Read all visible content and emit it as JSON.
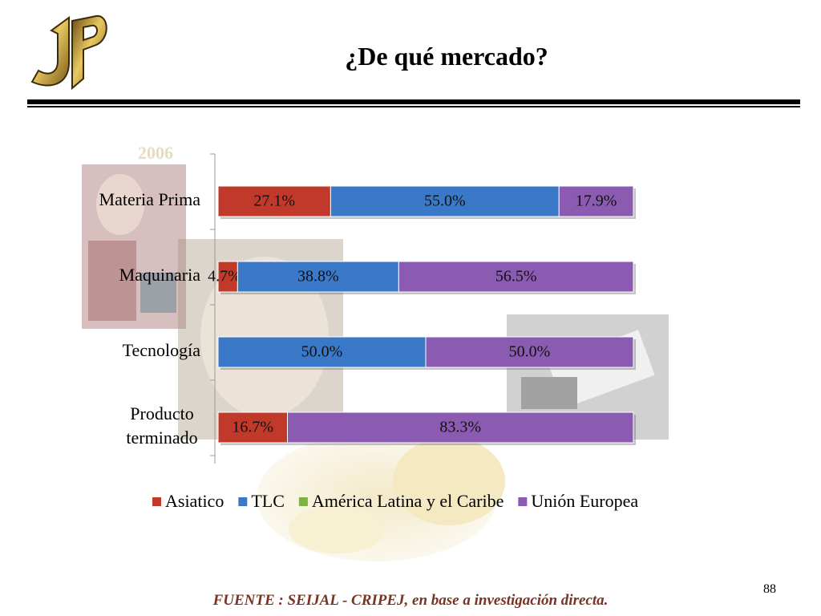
{
  "slide": {
    "title": "¿De qué mercado?",
    "footer": "FUENTE :  SEIJAL - CRIPEJ,  en base a investigación directa.",
    "page_number": "88"
  },
  "chart_data": {
    "type": "bar",
    "orientation": "horizontal",
    "stacked": true,
    "title": "2006",
    "categories": [
      "Materia Prima",
      "Maquinaria",
      "Tecnología",
      "Producto terminado"
    ],
    "series": [
      {
        "name": "Asiatico",
        "color": "#c0392b",
        "values": [
          27.1,
          4.7,
          0,
          16.7
        ]
      },
      {
        "name": "TLC",
        "color": "#3a78c8",
        "values": [
          55.0,
          38.8,
          50.0,
          0
        ]
      },
      {
        "name": "América Latina y el Caribe",
        "color": "#7cb342",
        "values": [
          0,
          0,
          0,
          0
        ]
      },
      {
        "name": "Unión Europea",
        "color": "#8a5bb0",
        "values": [
          17.9,
          56.5,
          50.0,
          83.3
        ]
      }
    ],
    "data_labels": [
      [
        "27.1%",
        "4.7%",
        "",
        "16.7%"
      ],
      [
        "55.0%",
        "38.8%",
        "50.0%",
        ""
      ],
      [
        "",
        "",
        "",
        ""
      ],
      [
        "17.9%",
        "56.5%",
        "50.0%",
        "83.3%"
      ]
    ],
    "xlim": [
      0,
      100
    ],
    "grid": false,
    "legend_position": "bottom"
  }
}
